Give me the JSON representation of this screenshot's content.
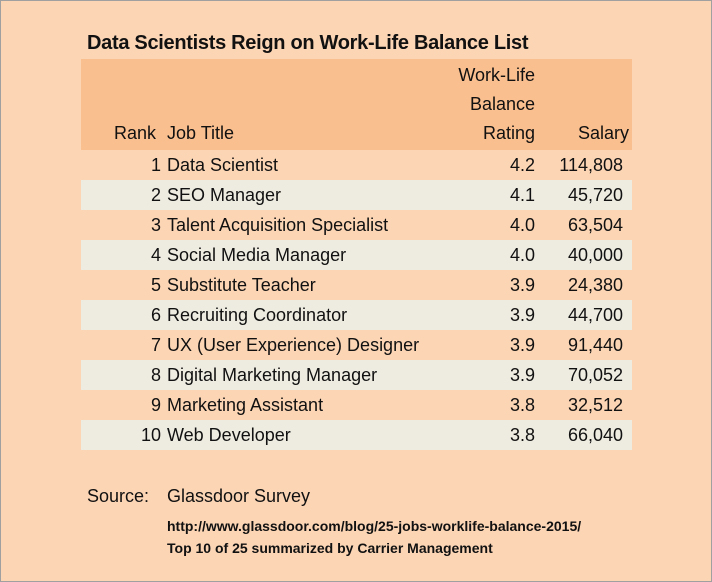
{
  "title": "Data Scientists Reign on Work-Life Balance List",
  "headers": {
    "rank": "Rank",
    "job": "Job Title",
    "rating_1": "Work-Life",
    "rating_2": "Balance",
    "rating_3": "Rating",
    "salary": "Salary"
  },
  "rows": [
    {
      "rank": "1",
      "job": "Data Scientist",
      "rating": "4.2",
      "salary": "114,808"
    },
    {
      "rank": "2",
      "job": "SEO Manager",
      "rating": "4.1",
      "salary": "45,720"
    },
    {
      "rank": "3",
      "job": "Talent Acquisition Specialist",
      "rating": "4.0",
      "salary": "63,504"
    },
    {
      "rank": "4",
      "job": "Social Media Manager",
      "rating": "4.0",
      "salary": "40,000"
    },
    {
      "rank": "5",
      "job": "Substitute Teacher",
      "rating": "3.9",
      "salary": "24,380"
    },
    {
      "rank": "6",
      "job": "Recruiting Coordinator",
      "rating": "3.9",
      "salary": "44,700"
    },
    {
      "rank": "7",
      "job": "UX (User Experience) Designer",
      "rating": "3.9",
      "salary": "91,440"
    },
    {
      "rank": "8",
      "job": "Digital Marketing Manager",
      "rating": "3.9",
      "salary": "70,052"
    },
    {
      "rank": "9",
      "job": "Marketing Assistant",
      "rating": "3.8",
      "salary": "32,512"
    },
    {
      "rank": "10",
      "job": "Web Developer",
      "rating": "3.8",
      "salary": "66,040"
    }
  ],
  "source": {
    "label": "Source:",
    "value": "Glassdoor Survey",
    "url": "http://www.glassdoor.com/blog/25-jobs-worklife-balance-2015/",
    "note": "Top 10 of 25 summarized by Carrier Management"
  },
  "colors": {
    "background": "#fcd5b5",
    "header": "#fabf8f",
    "alt_row": "#eeece1"
  }
}
